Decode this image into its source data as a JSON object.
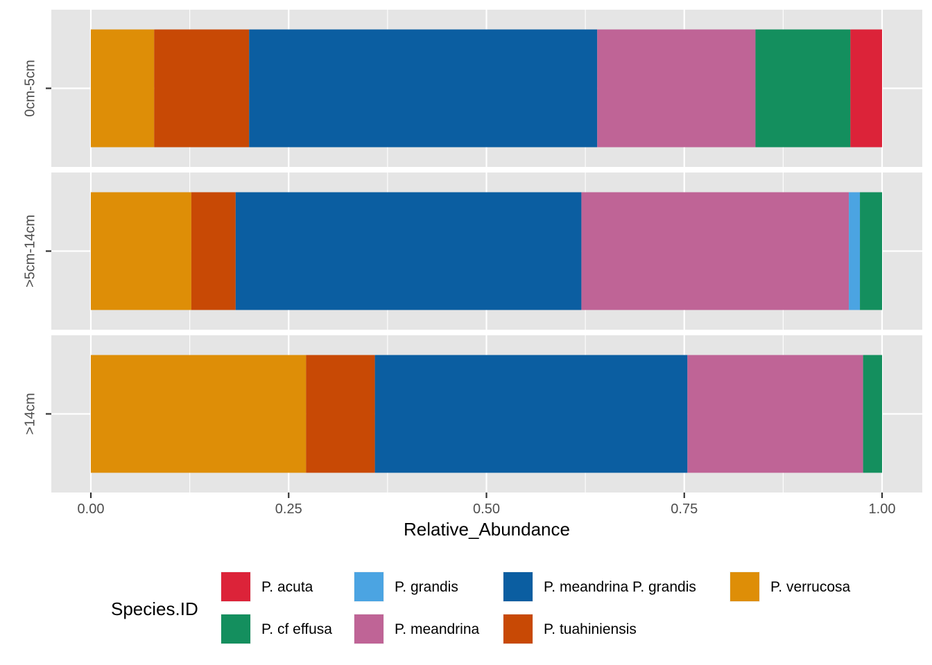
{
  "chart_data": {
    "type": "bar",
    "orientation": "horizontal",
    "stacked": true,
    "facets": [
      "0cm-5cm",
      ">5cm-14cm",
      ">14cm"
    ],
    "xlabel": "Relative_Abundance",
    "ylabel": "",
    "xlim": [
      0,
      1
    ],
    "x_ticks": [
      0,
      0.25,
      0.5,
      0.75,
      1
    ],
    "x_tick_labels": [
      "0.00",
      "0.25",
      "0.50",
      "0.75",
      "1.00"
    ],
    "grid": true,
    "legend": {
      "title": "Species.ID",
      "position": "bottom",
      "entries": [
        {
          "name": "P. acuta",
          "color": "#DC2339"
        },
        {
          "name": "P. cf effusa",
          "color": "#148F5E"
        },
        {
          "name": "P. grandis",
          "color": "#4BA4E2"
        },
        {
          "name": "P. meandrina",
          "color": "#BF6496"
        },
        {
          "name": "P. meandrina P. grandis",
          "color": "#0B5EA1"
        },
        {
          "name": "P. tuahiniensis",
          "color": "#C84905"
        },
        {
          "name": "P. verrucosa",
          "color": "#DE8E07"
        }
      ]
    },
    "stack_order": [
      "P. verrucosa",
      "P. tuahiniensis",
      "P. meandrina P. grandis",
      "P. meandrina",
      "P. grandis",
      "P. cf effusa",
      "P. acuta"
    ],
    "series": [
      {
        "name": "P. verrucosa",
        "values": [
          0.08,
          0.127,
          0.272
        ]
      },
      {
        "name": "P. tuahiniensis",
        "values": [
          0.12,
          0.056,
          0.087
        ]
      },
      {
        "name": "P. meandrina P. grandis",
        "values": [
          0.44,
          0.437,
          0.395
        ]
      },
      {
        "name": "P. meandrina",
        "values": [
          0.2,
          0.338,
          0.222
        ]
      },
      {
        "name": "P. grandis",
        "values": [
          0,
          0.014,
          0
        ]
      },
      {
        "name": "P. cf effusa",
        "values": [
          0.12,
          0.028,
          0.024
        ]
      },
      {
        "name": "P. acuta",
        "values": [
          0.04,
          0,
          0
        ]
      }
    ]
  }
}
